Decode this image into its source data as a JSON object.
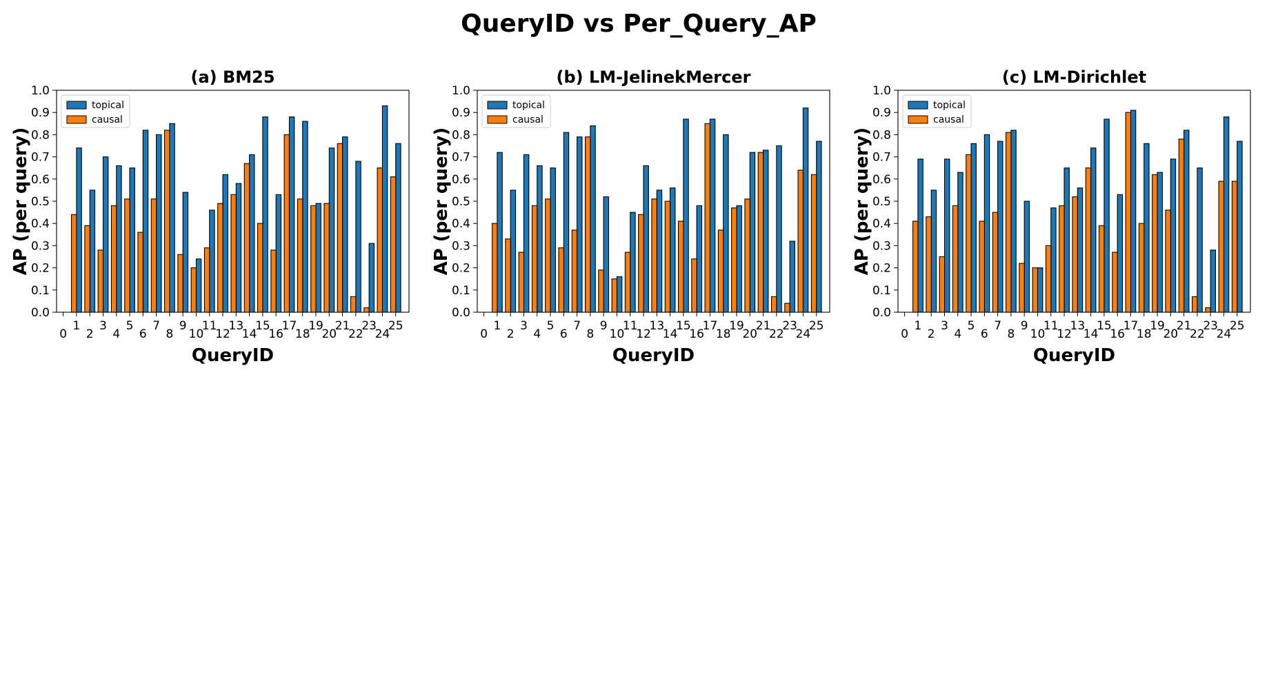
{
  "suptitle": "QueryID vs Per_Query_AP",
  "colors": {
    "topical": "#1f77b4",
    "causal": "#ff7f0e",
    "edge": "#000000"
  },
  "chart_data": [
    {
      "type": "bar",
      "title": "(a) BM25",
      "xlabel": "QueryID",
      "ylabel": "AP (per query)",
      "ylim": [
        0,
        1.0
      ],
      "yticks": [
        0.0,
        0.1,
        0.2,
        0.3,
        0.4,
        0.5,
        0.6,
        0.7,
        0.8,
        0.9,
        1.0
      ],
      "ytick_labels": [
        "0.0",
        "0.1",
        "0.2",
        "0.3",
        "0.4",
        "0.5",
        "0.6",
        "0.7",
        "0.8",
        "0.9",
        "1.0"
      ],
      "x": [
        1,
        2,
        3,
        4,
        5,
        6,
        7,
        8,
        9,
        10,
        11,
        12,
        13,
        14,
        15,
        16,
        17,
        18,
        19,
        20,
        21,
        22,
        23,
        24,
        25
      ],
      "xtick_values": [
        0,
        1,
        2,
        3,
        4,
        5,
        6,
        7,
        8,
        9,
        10,
        11,
        12,
        13,
        14,
        15,
        16,
        17,
        18,
        19,
        20,
        21,
        22,
        23,
        24,
        25
      ],
      "xtick_labels": [
        "0",
        "1",
        "2",
        "3",
        "4",
        "5",
        "6",
        "7",
        "8",
        "9",
        "10",
        "11",
        "12",
        "13",
        "14",
        "15",
        "16",
        "17",
        "18",
        "19",
        "20",
        "21",
        "22",
        "23",
        "24",
        "25"
      ],
      "legend": "upper-left",
      "series": [
        {
          "name": "topical",
          "values": [
            0.74,
            0.55,
            0.7,
            0.66,
            0.65,
            0.82,
            0.8,
            0.85,
            0.54,
            0.24,
            0.46,
            0.62,
            0.58,
            0.71,
            0.88,
            0.53,
            0.88,
            0.86,
            0.49,
            0.74,
            0.79,
            0.68,
            0.31,
            0.93,
            0.76
          ]
        },
        {
          "name": "causal",
          "values": [
            0.44,
            0.39,
            0.28,
            0.48,
            0.51,
            0.36,
            0.51,
            0.82,
            0.26,
            0.2,
            0.29,
            0.49,
            0.53,
            0.67,
            0.4,
            0.28,
            0.8,
            0.51,
            0.48,
            0.49,
            0.76,
            0.07,
            0.02,
            0.65,
            0.61
          ]
        }
      ]
    },
    {
      "type": "bar",
      "title": "(b) LM-JelinekMercer",
      "xlabel": "QueryID",
      "ylabel": "AP (per query)",
      "ylim": [
        0,
        1.0
      ],
      "yticks": [
        0.0,
        0.1,
        0.2,
        0.3,
        0.4,
        0.5,
        0.6,
        0.7,
        0.8,
        0.9,
        1.0
      ],
      "ytick_labels": [
        "0.0",
        "0.1",
        "0.2",
        "0.3",
        "0.4",
        "0.5",
        "0.6",
        "0.7",
        "0.8",
        "0.9",
        "1.0"
      ],
      "x": [
        1,
        2,
        3,
        4,
        5,
        6,
        7,
        8,
        9,
        10,
        11,
        12,
        13,
        14,
        15,
        16,
        17,
        18,
        19,
        20,
        21,
        22,
        23,
        24,
        25
      ],
      "xtick_values": [
        0,
        1,
        2,
        3,
        4,
        5,
        6,
        7,
        8,
        9,
        10,
        11,
        12,
        13,
        14,
        15,
        16,
        17,
        18,
        19,
        20,
        21,
        22,
        23,
        24,
        25
      ],
      "xtick_labels": [
        "0",
        "1",
        "2",
        "3",
        "4",
        "5",
        "6",
        "7",
        "8",
        "9",
        "10",
        "11",
        "12",
        "13",
        "14",
        "15",
        "16",
        "17",
        "18",
        "19",
        "20",
        "21",
        "22",
        "23",
        "24",
        "25"
      ],
      "legend": "upper-left",
      "series": [
        {
          "name": "topical",
          "values": [
            0.72,
            0.55,
            0.71,
            0.66,
            0.65,
            0.81,
            0.79,
            0.84,
            0.52,
            0.16,
            0.45,
            0.66,
            0.55,
            0.56,
            0.87,
            0.48,
            0.87,
            0.8,
            0.48,
            0.72,
            0.73,
            0.75,
            0.32,
            0.92,
            0.77
          ]
        },
        {
          "name": "causal",
          "values": [
            0.4,
            0.33,
            0.27,
            0.48,
            0.51,
            0.29,
            0.37,
            0.79,
            0.19,
            0.15,
            0.27,
            0.44,
            0.51,
            0.5,
            0.41,
            0.24,
            0.85,
            0.37,
            0.47,
            0.51,
            0.72,
            0.07,
            0.04,
            0.64,
            0.62
          ]
        }
      ]
    },
    {
      "type": "bar",
      "title": "(c) LM-Dirichlet",
      "xlabel": "QueryID",
      "ylabel": "AP (per query)",
      "ylim": [
        0,
        1.0
      ],
      "yticks": [
        0.0,
        0.1,
        0.2,
        0.3,
        0.4,
        0.5,
        0.6,
        0.7,
        0.8,
        0.9,
        1.0
      ],
      "ytick_labels": [
        "0.0",
        "0.1",
        "0.2",
        "0.3",
        "0.4",
        "0.5",
        "0.6",
        "0.7",
        "0.8",
        "0.9",
        "1.0"
      ],
      "x": [
        1,
        2,
        3,
        4,
        5,
        6,
        7,
        8,
        9,
        10,
        11,
        12,
        13,
        14,
        15,
        16,
        17,
        18,
        19,
        20,
        21,
        22,
        23,
        24,
        25
      ],
      "xtick_values": [
        0,
        1,
        2,
        3,
        4,
        5,
        6,
        7,
        8,
        9,
        10,
        11,
        12,
        13,
        14,
        15,
        16,
        17,
        18,
        19,
        20,
        21,
        22,
        23,
        24,
        25
      ],
      "xtick_labels": [
        "0",
        "1",
        "2",
        "3",
        "4",
        "5",
        "6",
        "7",
        "8",
        "9",
        "10",
        "11",
        "12",
        "13",
        "14",
        "15",
        "16",
        "17",
        "18",
        "19",
        "20",
        "21",
        "22",
        "23",
        "24",
        "25"
      ],
      "legend": "upper-left",
      "series": [
        {
          "name": "topical",
          "values": [
            0.69,
            0.55,
            0.69,
            0.63,
            0.76,
            0.8,
            0.77,
            0.82,
            0.5,
            0.2,
            0.47,
            0.65,
            0.56,
            0.74,
            0.87,
            0.53,
            0.91,
            0.76,
            0.63,
            0.69,
            0.82,
            0.65,
            0.28,
            0.88,
            0.77
          ]
        },
        {
          "name": "causal",
          "values": [
            0.41,
            0.43,
            0.25,
            0.48,
            0.71,
            0.41,
            0.45,
            0.81,
            0.22,
            0.2,
            0.3,
            0.48,
            0.52,
            0.65,
            0.39,
            0.27,
            0.9,
            0.4,
            0.62,
            0.46,
            0.78,
            0.07,
            0.02,
            0.59,
            0.59
          ]
        }
      ]
    }
  ]
}
